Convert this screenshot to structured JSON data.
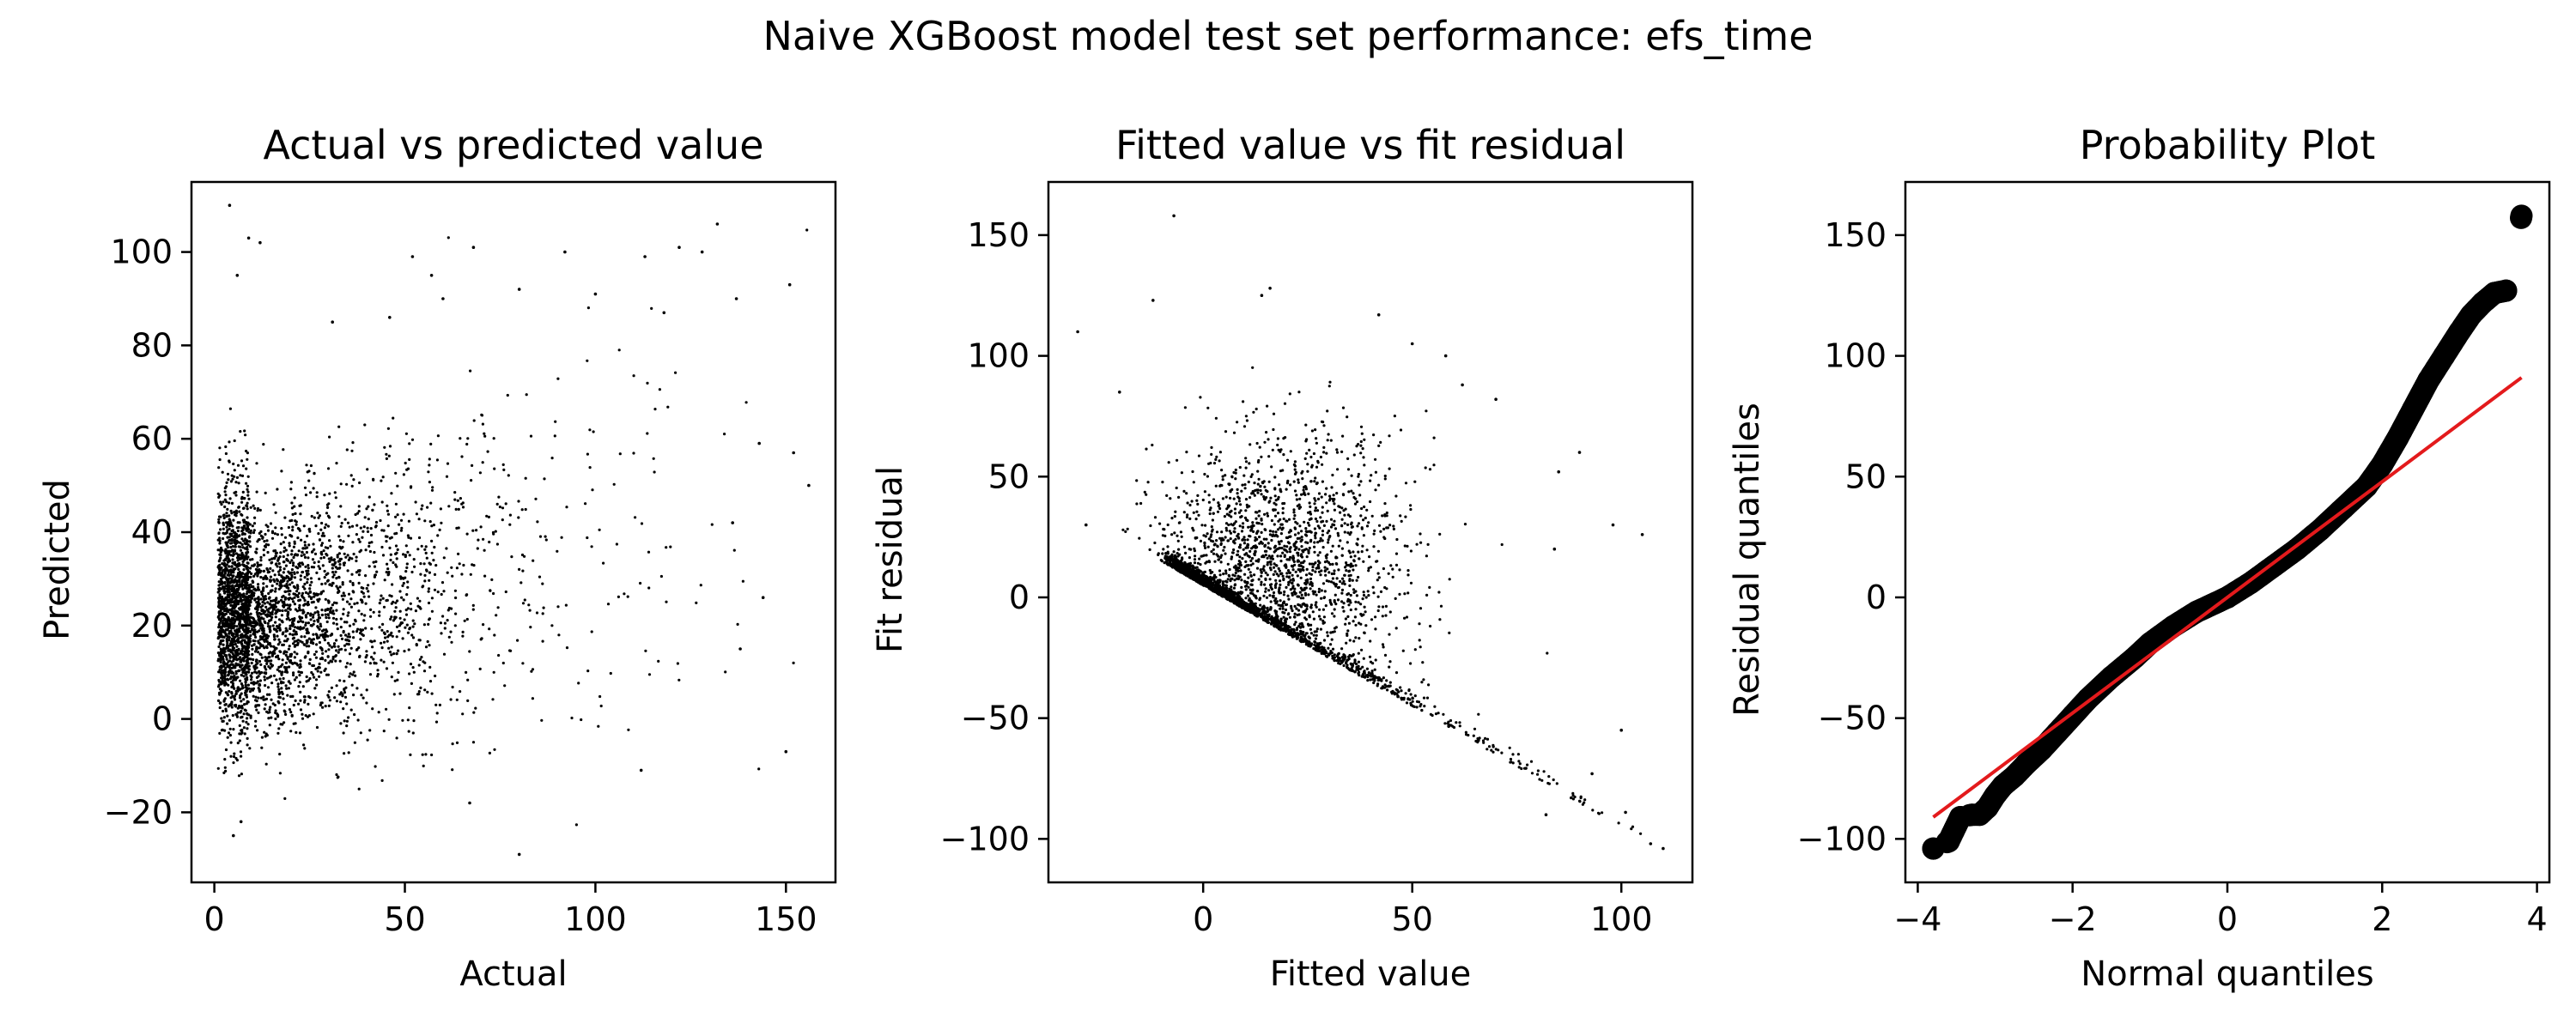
{
  "figure_title": "Naive XGBoost model test set performance: efs_time",
  "colors": {
    "points": "#000000",
    "fit_line": "#e31a1c",
    "frame": "#000000",
    "background": "#ffffff"
  },
  "chart_data": [
    {
      "type": "scatter",
      "title": "Actual vs predicted value",
      "xlabel": "Actual",
      "ylabel": "Predicted",
      "xlim": [
        -6,
        163
      ],
      "ylim": [
        -35,
        115
      ],
      "xticks": [
        0,
        50,
        100,
        150
      ],
      "yticks": [
        -20,
        0,
        20,
        40,
        60,
        80,
        100
      ],
      "grid": false,
      "outliers": [
        {
          "x": 4,
          "y": 110
        },
        {
          "x": 9,
          "y": 103
        },
        {
          "x": 12,
          "y": 102
        },
        {
          "x": 6,
          "y": 95
        },
        {
          "x": 132,
          "y": 106
        },
        {
          "x": 122,
          "y": 101
        },
        {
          "x": 128,
          "y": 100
        },
        {
          "x": 113,
          "y": 99
        },
        {
          "x": 68,
          "y": 101
        },
        {
          "x": 92,
          "y": 100
        },
        {
          "x": 52,
          "y": 99
        },
        {
          "x": 57,
          "y": 95
        },
        {
          "x": 151,
          "y": 93
        },
        {
          "x": 100,
          "y": 91
        },
        {
          "x": 80,
          "y": 92
        },
        {
          "x": 137,
          "y": 90
        },
        {
          "x": 118,
          "y": 87
        },
        {
          "x": 156,
          "y": 50
        },
        {
          "x": 152,
          "y": 57
        },
        {
          "x": 143,
          "y": 59
        },
        {
          "x": 150,
          "y": -7
        },
        {
          "x": 80,
          "y": -29
        },
        {
          "x": 67,
          "y": -18
        },
        {
          "x": 112,
          "y": -11
        },
        {
          "x": 5,
          "y": -25
        },
        {
          "x": 7,
          "y": -22
        },
        {
          "x": 144,
          "y": 26
        },
        {
          "x": 138,
          "y": 15
        },
        {
          "x": 136,
          "y": 42
        },
        {
          "x": 60,
          "y": 90
        },
        {
          "x": 31,
          "y": 85
        },
        {
          "x": 46,
          "y": 86
        }
      ]
    },
    {
      "type": "scatter",
      "title": "Fitted value vs fit residual",
      "xlabel": "Fitted value",
      "ylabel": "Fit residual",
      "xlim": [
        -37,
        117
      ],
      "ylim": [
        -118,
        172
      ],
      "xticks": [
        0,
        50,
        100
      ],
      "yticks": [
        -100,
        -50,
        0,
        50,
        100,
        150
      ],
      "grid": false,
      "outliers": [
        {
          "x": -7,
          "y": 158
        },
        {
          "x": -30,
          "y": 110
        },
        {
          "x": -12,
          "y": 123
        },
        {
          "x": -20,
          "y": 85
        },
        {
          "x": 16,
          "y": 128
        },
        {
          "x": 14,
          "y": 125
        },
        {
          "x": 50,
          "y": 105
        },
        {
          "x": 58,
          "y": 100
        },
        {
          "x": 90,
          "y": 60
        },
        {
          "x": 98,
          "y": 30
        },
        {
          "x": 105,
          "y": 26
        },
        {
          "x": 110,
          "y": -104
        },
        {
          "x": 101,
          "y": -89
        },
        {
          "x": 107,
          "y": -102
        },
        {
          "x": 82,
          "y": -90
        },
        {
          "x": 88,
          "y": -83
        },
        {
          "x": 93,
          "y": -73
        },
        {
          "x": 100,
          "y": -55
        },
        {
          "x": 84,
          "y": 20
        },
        {
          "x": 70,
          "y": 82
        },
        {
          "x": 85,
          "y": 52
        },
        {
          "x": -28,
          "y": 30
        },
        {
          "x": 42,
          "y": 117
        },
        {
          "x": 62,
          "y": 88
        }
      ]
    },
    {
      "type": "scatter",
      "title": "Probability Plot",
      "xlabel": "Normal quantiles",
      "ylabel": "Residual quantiles",
      "xlim": [
        -4.16,
        4.16
      ],
      "ylim": [
        -118,
        172
      ],
      "xticks": [
        -4,
        -2,
        0,
        2,
        4
      ],
      "yticks": [
        -100,
        -50,
        0,
        50,
        100,
        150
      ],
      "grid": false,
      "points": [
        {
          "x": -3.8,
          "y": -104
        },
        {
          "x": -3.6,
          "y": -101
        },
        {
          "x": -3.45,
          "y": -91
        },
        {
          "x": -3.3,
          "y": -90
        },
        {
          "x": -3.2,
          "y": -90
        },
        {
          "x": -3.1,
          "y": -87
        },
        {
          "x": -3.0,
          "y": -82
        },
        {
          "x": -2.9,
          "y": -78
        },
        {
          "x": -2.75,
          "y": -74
        },
        {
          "x": -2.6,
          "y": -69
        },
        {
          "x": -2.4,
          "y": -63
        },
        {
          "x": -2.2,
          "y": -56
        },
        {
          "x": -2.0,
          "y": -49
        },
        {
          "x": -1.8,
          "y": -42
        },
        {
          "x": -1.5,
          "y": -33
        },
        {
          "x": -1.2,
          "y": -25
        },
        {
          "x": -1.0,
          "y": -19
        },
        {
          "x": -0.7,
          "y": -12
        },
        {
          "x": -0.4,
          "y": -6
        },
        {
          "x": 0.0,
          "y": 0
        },
        {
          "x": 0.3,
          "y": 6
        },
        {
          "x": 0.6,
          "y": 13
        },
        {
          "x": 0.9,
          "y": 20
        },
        {
          "x": 1.2,
          "y": 28
        },
        {
          "x": 1.5,
          "y": 37
        },
        {
          "x": 1.8,
          "y": 46
        },
        {
          "x": 2.0,
          "y": 55
        },
        {
          "x": 2.2,
          "y": 66
        },
        {
          "x": 2.4,
          "y": 78
        },
        {
          "x": 2.6,
          "y": 90
        },
        {
          "x": 2.8,
          "y": 100
        },
        {
          "x": 3.0,
          "y": 110
        },
        {
          "x": 3.15,
          "y": 117
        },
        {
          "x": 3.3,
          "y": 122
        },
        {
          "x": 3.45,
          "y": 126
        },
        {
          "x": 3.6,
          "y": 127
        },
        {
          "x": 3.8,
          "y": 158
        }
      ],
      "fit_line": {
        "x": [
          -3.8,
          3.8
        ],
        "y": [
          -91,
          91
        ]
      }
    }
  ]
}
